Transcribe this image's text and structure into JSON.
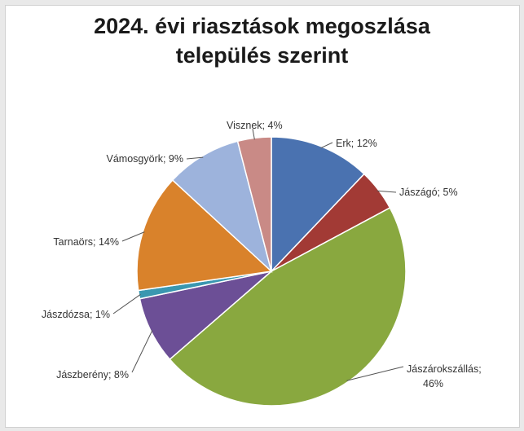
{
  "chart_data": {
    "type": "pie",
    "title_lines": [
      "2024. évi riasztások megoszlása",
      "település szerint"
    ],
    "slices": [
      {
        "label": "Erk; 12%",
        "value": 12,
        "color": "#4a72b0"
      },
      {
        "label": "Jászágó; 5%",
        "value": 5,
        "color": "#a23a35"
      },
      {
        "label": "Jászárokszállás;",
        "label2": "46%",
        "value": 46,
        "color": "#89a83f"
      },
      {
        "label": "Jászberény; 8%",
        "value": 8,
        "color": "#6c4f96"
      },
      {
        "label": "Jászdózsa; 1%",
        "value": 1,
        "color": "#3a97b0"
      },
      {
        "label": "Tarnaörs; 14%",
        "value": 14,
        "color": "#d9822b"
      },
      {
        "label": "Vámosgyörk; 9%",
        "value": 9,
        "color": "#9db3dc"
      },
      {
        "label": "Visznek; 4%",
        "value": 4,
        "color": "#c98a86"
      }
    ]
  }
}
